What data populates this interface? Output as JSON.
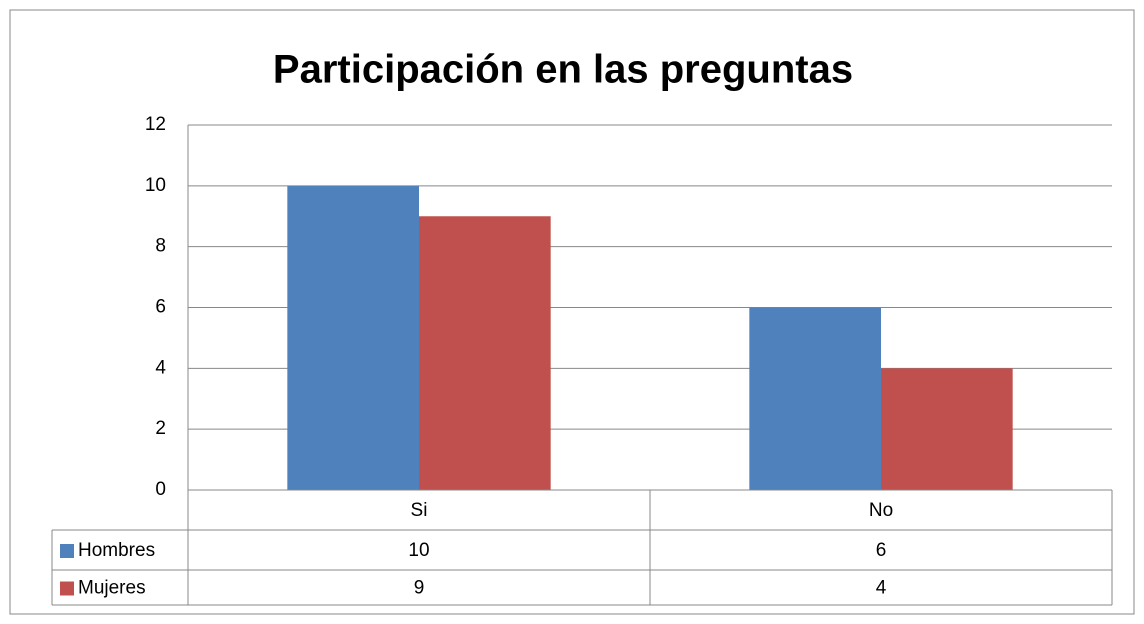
{
  "chart_data": {
    "type": "bar",
    "title": "Participación en las preguntas",
    "categories": [
      "Si",
      "No"
    ],
    "series": [
      {
        "name": "Hombres",
        "color": "#4f81bd",
        "values": [
          10,
          6
        ]
      },
      {
        "name": "Mujeres",
        "color": "#c0504d",
        "values": [
          9,
          4
        ]
      }
    ],
    "ylim": [
      0,
      12
    ],
    "yticks": [
      0,
      2,
      4,
      6,
      8,
      10,
      12
    ],
    "grid": true,
    "data_table": true
  }
}
